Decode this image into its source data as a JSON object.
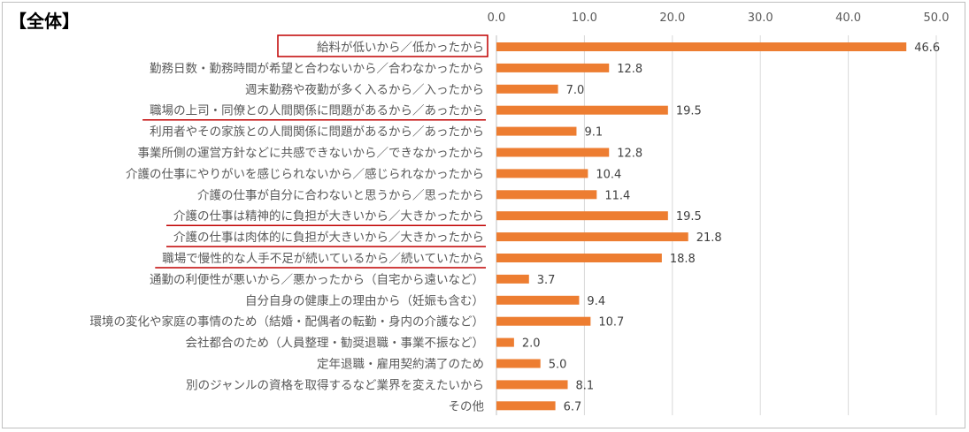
{
  "chart_data": {
    "type": "bar",
    "orientation": "horizontal",
    "title": "【全体】",
    "xlim": [
      0,
      50
    ],
    "ticks": [
      "0.0",
      "10.0",
      "20.0",
      "30.0",
      "40.0",
      "50.0"
    ],
    "grid": true,
    "bar_color": "#ED7D31",
    "highlight_box_color": "#C00000",
    "underline_color": "#C00000",
    "categories": [
      "給料が低いから／低かったから",
      "勤務日数・勤務時間が希望と合わないから／合わなかったから",
      "週末勤務や夜勤が多く入るから／入ったから",
      "職場の上司・同僚との人間関係に問題があるから／あったから",
      "利用者やその家族との人間関係に問題があるから／あったから",
      "事業所側の運営方針などに共感できないから／できなかったから",
      "介護の仕事にやりがいを感じられないから／感じられなかったから",
      "介護の仕事が自分に合わないと思うから／思ったから",
      "介護の仕事は精神的に負担が大きいから／大きかったから",
      "介護の仕事は肉体的に負担が大きいから／大きかったから",
      "職場で慢性的な人手不足が続いているから／続いていたから",
      "通勤の利便性が悪いから／悪かったから（自宅から遠いなど）",
      "自分自身の健康上の理由から（妊娠も含む）",
      "環境の変化や家庭の事情のため（結婚・配偶者の転勤・身内の介護など）",
      "会社都合のため（人員整理・勧奨退職・事業不振など）",
      "定年退職・雇用契約満了のため",
      "別のジャンルの資格を取得するなど業界を変えたいから",
      "その他"
    ],
    "values": [
      46.6,
      12.8,
      7.0,
      19.5,
      9.1,
      12.8,
      10.4,
      11.4,
      19.5,
      21.8,
      18.8,
      3.7,
      9.4,
      10.7,
      2.0,
      5.0,
      8.1,
      6.7
    ],
    "value_labels": [
      "46.6",
      "12.8",
      "7.0",
      "19.5",
      "9.1",
      "12.8",
      "10.4",
      "11.4",
      "19.5",
      "21.8",
      "18.8",
      "3.7",
      "9.4",
      "10.7",
      "2.0",
      "5.0",
      "8.1",
      "6.7"
    ],
    "boxed_categories": [
      0
    ],
    "underlined_categories": [
      3,
      8,
      9,
      10
    ]
  }
}
